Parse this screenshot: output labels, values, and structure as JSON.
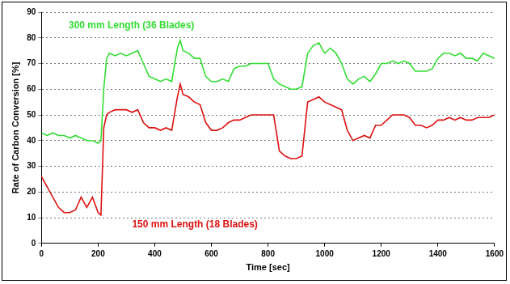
{
  "chart_data": {
    "type": "line",
    "x_label": "Time [sec]",
    "y_label": "Rate of Carbon Conversion [%]",
    "x": [
      0,
      20,
      40,
      60,
      80,
      100,
      120,
      140,
      160,
      180,
      200,
      210,
      220,
      230,
      240,
      260,
      280,
      300,
      320,
      340,
      360,
      380,
      400,
      420,
      440,
      460,
      480,
      490,
      500,
      520,
      540,
      560,
      580,
      600,
      620,
      640,
      660,
      680,
      700,
      720,
      740,
      760,
      780,
      800,
      820,
      840,
      860,
      880,
      900,
      920,
      940,
      960,
      980,
      1000,
      1020,
      1040,
      1060,
      1080,
      1100,
      1120,
      1140,
      1160,
      1180,
      1200,
      1220,
      1240,
      1260,
      1280,
      1300,
      1320,
      1340,
      1360,
      1380,
      1400,
      1420,
      1440,
      1460,
      1480,
      1500,
      1520,
      1540,
      1560,
      1580,
      1600
    ],
    "series": [
      {
        "name": "300 mm Length (36 Blades)",
        "color": "#33dd33",
        "values": [
          43,
          42,
          43,
          42,
          42,
          41,
          42,
          41,
          40,
          40,
          39,
          40,
          60,
          72,
          74,
          73,
          74,
          73,
          74,
          75,
          70,
          65,
          64,
          63,
          64,
          63,
          76,
          79,
          75,
          74,
          72,
          72,
          65,
          63,
          63,
          64,
          63,
          68,
          69,
          69,
          70,
          70,
          70,
          70,
          64,
          62,
          61,
          60,
          60,
          61,
          74,
          77,
          78,
          74,
          76,
          74,
          70,
          64,
          62,
          64,
          65,
          63,
          66,
          70,
          70,
          71,
          70,
          71,
          70,
          67,
          67,
          67,
          68,
          72,
          74,
          74,
          73,
          74,
          72,
          72,
          71,
          74,
          73,
          72
        ]
      },
      {
        "name": "150 mm Length (18 Blades)",
        "color": "#dd1111",
        "values": [
          26,
          22,
          18,
          14,
          12,
          12,
          13,
          18,
          14,
          18,
          12,
          11,
          45,
          50,
          51,
          52,
          52,
          52,
          51,
          52,
          47,
          45,
          45,
          44,
          45,
          44,
          57,
          62,
          58,
          57,
          55,
          54,
          47,
          44,
          44,
          45,
          47,
          48,
          48,
          49,
          50,
          50,
          50,
          50,
          50,
          36,
          34,
          33,
          33,
          34,
          55,
          56,
          57,
          55,
          54,
          53,
          52,
          44,
          40,
          41,
          42,
          41,
          46,
          46,
          48,
          50,
          50,
          50,
          49,
          46,
          46,
          45,
          46,
          48,
          48,
          49,
          48,
          49,
          48,
          48,
          49,
          49,
          49,
          50
        ]
      }
    ],
    "xlim": [
      0,
      1600
    ],
    "xticks": [
      0,
      200,
      400,
      600,
      800,
      1000,
      1200,
      1400,
      1600
    ],
    "ylim": [
      0,
      90
    ],
    "yticks": [
      0,
      10,
      20,
      30,
      40,
      50,
      60,
      70,
      80,
      90
    ],
    "grid": true
  }
}
